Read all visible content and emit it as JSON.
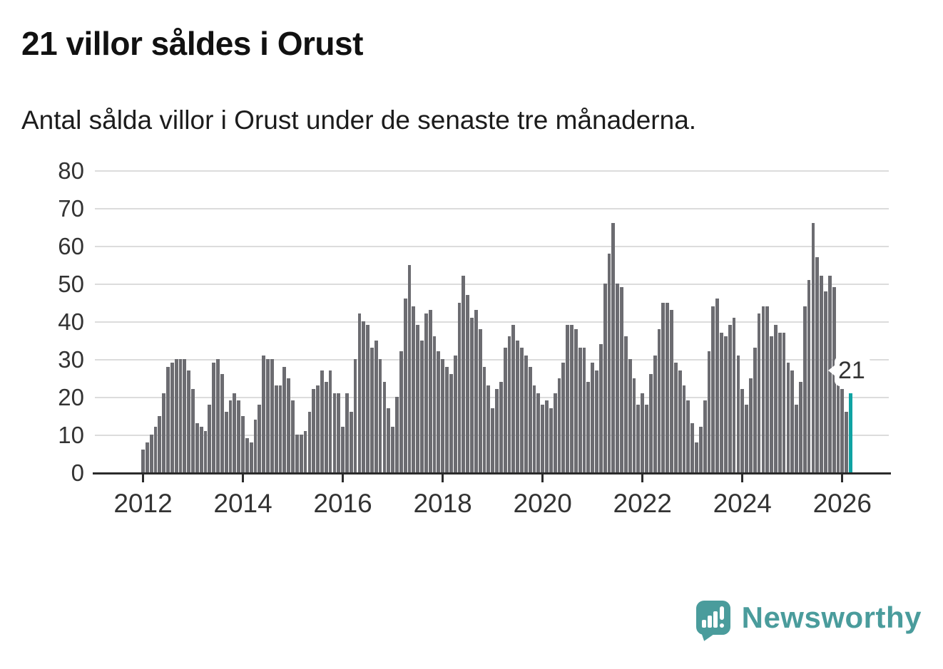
{
  "header": {
    "title": "21 villor såldes i Orust",
    "subtitle": "Antal sålda villor i Orust under de senaste tre månaderna."
  },
  "annotation": {
    "label": "21"
  },
  "branding": {
    "name": "Newsworthy",
    "icon": "newsworthy-speech-bubble-bar-chart-icon"
  },
  "colors": {
    "bar": "#6c6c71",
    "highlight": "#0fa3a3",
    "grid": "#dcdcdc",
    "axis": "#2b2b2b",
    "text": "#333333",
    "brand_teal": "#4a9c9c"
  },
  "chart_data": {
    "type": "bar",
    "title": "21 villor såldes i Orust",
    "subtitle": "Antal sålda villor i Orust under de senaste tre månaderna.",
    "xlabel": "",
    "ylabel": "",
    "frequency": "monthly",
    "x_start": "2012-01",
    "x_end": "2026-03",
    "x_tick_labels": [
      "2012",
      "2014",
      "2016",
      "2018",
      "2020",
      "2022",
      "2024",
      "2026"
    ],
    "y_ticks": [
      0,
      10,
      20,
      30,
      40,
      50,
      60,
      70,
      80
    ],
    "ylim": [
      0,
      80
    ],
    "grid": true,
    "legend": false,
    "values": [
      6,
      8,
      10,
      12,
      15,
      21,
      28,
      29,
      30,
      30,
      30,
      27,
      22,
      13,
      12,
      11,
      18,
      29,
      30,
      26,
      16,
      19,
      21,
      19,
      15,
      9,
      8,
      14,
      18,
      31,
      30,
      30,
      23,
      23,
      28,
      25,
      19,
      10,
      10,
      11,
      16,
      22,
      23,
      27,
      24,
      27,
      21,
      21,
      12,
      21,
      16,
      30,
      42,
      40,
      39,
      33,
      35,
      30,
      24,
      17,
      12,
      20,
      32,
      46,
      55,
      44,
      39,
      35,
      42,
      43,
      36,
      32,
      30,
      28,
      26,
      31,
      45,
      52,
      47,
      41,
      43,
      38,
      28,
      23,
      17,
      22,
      24,
      33,
      36,
      39,
      35,
      33,
      31,
      28,
      23,
      21,
      18,
      19,
      17,
      21,
      25,
      29,
      39,
      39,
      38,
      33,
      33,
      24,
      29,
      27,
      34,
      50,
      58,
      66,
      50,
      49,
      36,
      30,
      25,
      18,
      21,
      18,
      26,
      31,
      38,
      45,
      45,
      43,
      29,
      27,
      23,
      19,
      13,
      8,
      12,
      19,
      32,
      44,
      46,
      37,
      36,
      39,
      41,
      31,
      22,
      18,
      25,
      33,
      42,
      44,
      44,
      36,
      39,
      37,
      37,
      29,
      27,
      18,
      24,
      44,
      51,
      66,
      57,
      52,
      48,
      52,
      49,
      25,
      22,
      16,
      21
    ],
    "highlight_last": true,
    "highlight_value": 21,
    "annotation_label": "21"
  }
}
